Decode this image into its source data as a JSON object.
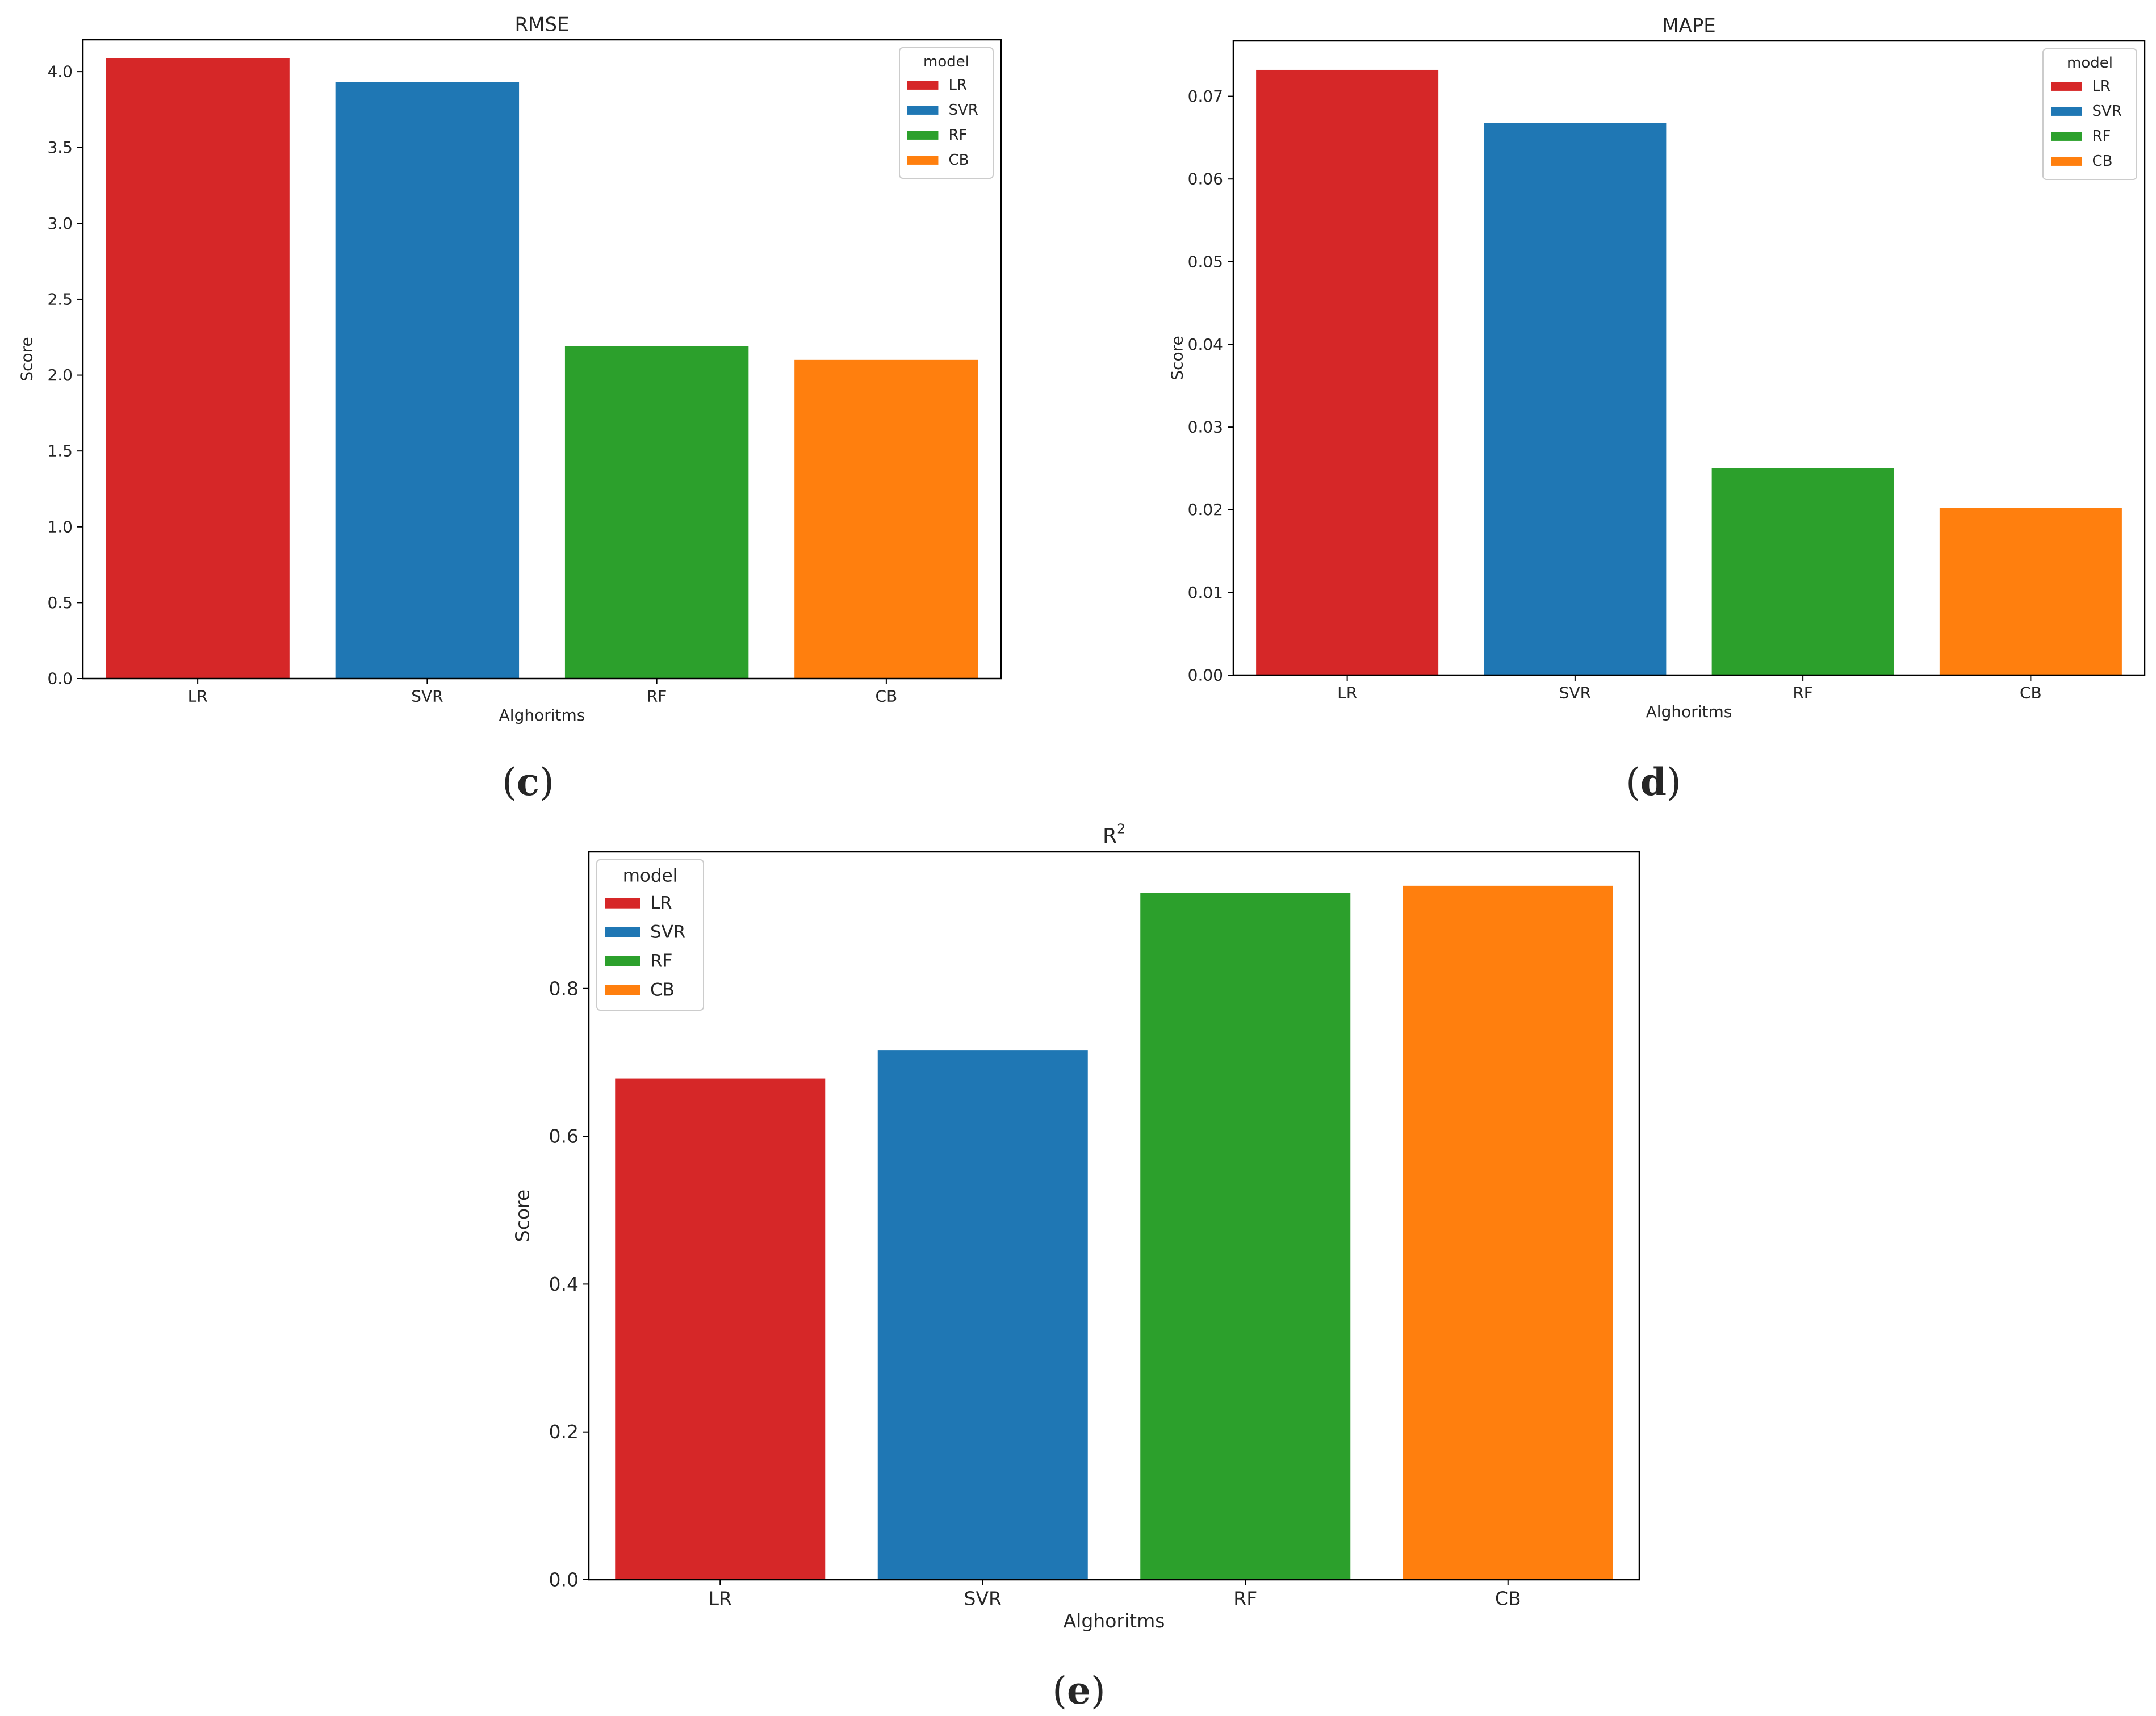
{
  "chart_data": [
    {
      "id": "c",
      "type": "bar",
      "title": "RMSE",
      "title_sup": "",
      "panel_label": "(c)",
      "xlabel": "Alghoritms",
      "ylabel": "Score",
      "categories": [
        "LR",
        "SVR",
        "RF",
        "CB"
      ],
      "values": [
        4.09,
        3.93,
        2.19,
        2.1
      ],
      "ylim": [
        0,
        4.21
      ],
      "yticks": [
        0.0,
        0.5,
        1.0,
        1.5,
        2.0,
        2.5,
        3.0,
        3.5,
        4.0
      ],
      "tick_decimals": 1,
      "legend": {
        "title": "model",
        "labels": [
          "LR",
          "SVR",
          "RF",
          "CB"
        ],
        "position": "top-right"
      }
    },
    {
      "id": "d",
      "type": "bar",
      "title": "MAPE",
      "title_sup": "",
      "panel_label": "(d)",
      "xlabel": "Alghoritms",
      "ylabel": "Score",
      "categories": [
        "LR",
        "SVR",
        "RF",
        "CB"
      ],
      "values": [
        0.0732,
        0.0668,
        0.025,
        0.0202
      ],
      "ylim": [
        0,
        0.0767
      ],
      "yticks": [
        0.0,
        0.01,
        0.02,
        0.03,
        0.04,
        0.05,
        0.06,
        0.07
      ],
      "tick_decimals": 2,
      "legend": {
        "title": "model",
        "labels": [
          "LR",
          "SVR",
          "RF",
          "CB"
        ],
        "position": "top-right"
      }
    },
    {
      "id": "e",
      "type": "bar",
      "title": "R",
      "title_sup": "2",
      "panel_label": "(e)",
      "xlabel": "Alghoritms",
      "ylabel": "Score",
      "categories": [
        "LR",
        "SVR",
        "RF",
        "CB"
      ],
      "values": [
        0.678,
        0.716,
        0.929,
        0.939
      ],
      "ylim": [
        0,
        0.985
      ],
      "yticks": [
        0.0,
        0.2,
        0.4,
        0.6,
        0.8
      ],
      "tick_decimals": 1,
      "legend": {
        "title": "model",
        "labels": [
          "LR",
          "SVR",
          "RF",
          "CB"
        ],
        "position": "top-left"
      }
    }
  ],
  "colors": [
    "#d62728",
    "#1f77b4",
    "#2ca02c",
    "#ff7f0e"
  ]
}
